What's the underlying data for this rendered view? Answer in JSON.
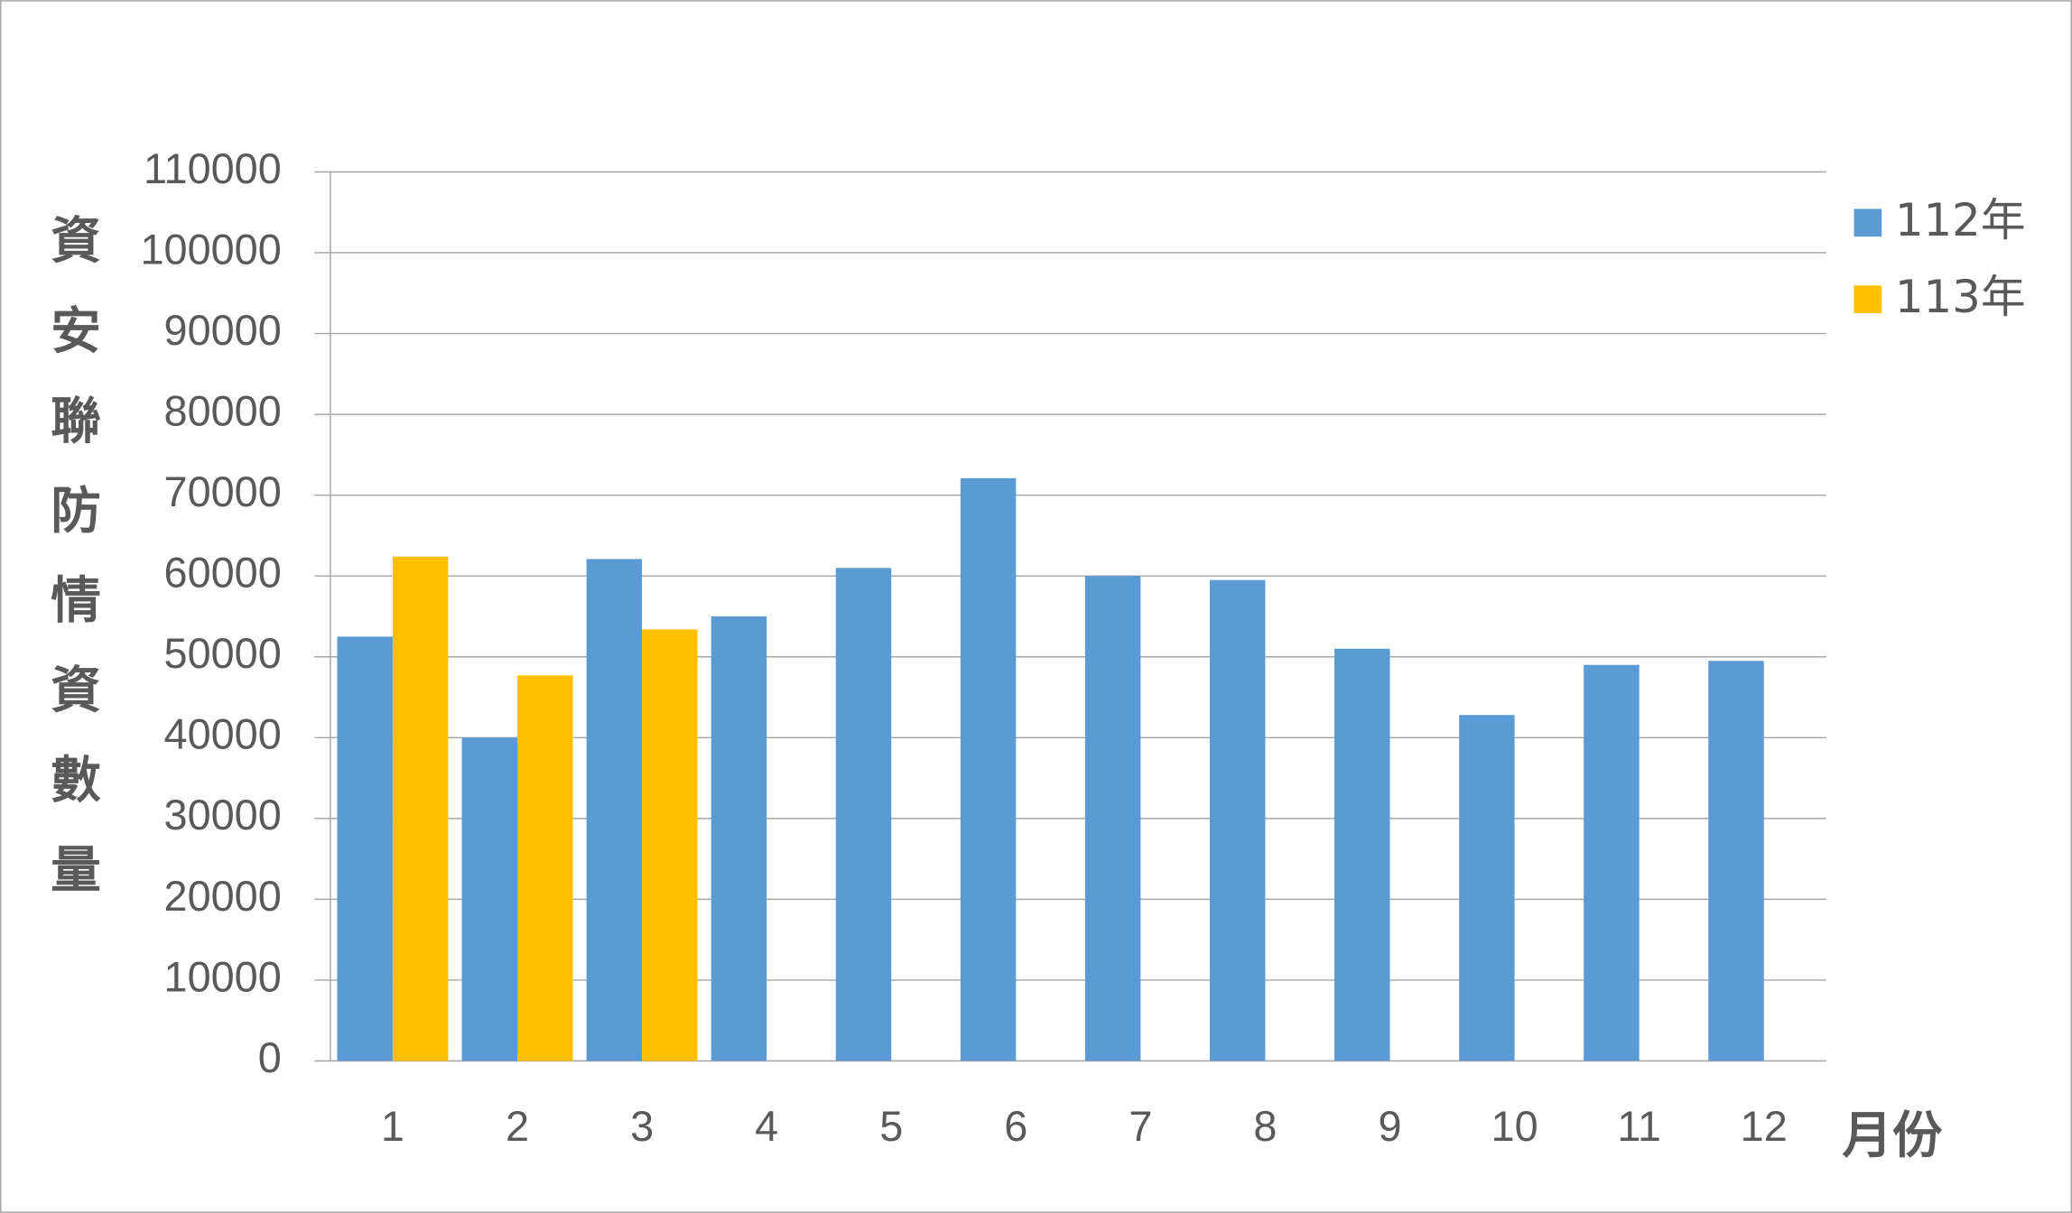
{
  "chart_data": {
    "type": "bar",
    "y_axis_label": "資安聯防情資數量",
    "x_axis_label": "月份",
    "categories": [
      "1",
      "2",
      "3",
      "4",
      "5",
      "6",
      "7",
      "8",
      "9",
      "10",
      "11",
      "12"
    ],
    "series": [
      {
        "name": "112年",
        "color": "#5b9bd5",
        "values": [
          52500,
          40000,
          62100,
          55000,
          61000,
          72100,
          60000,
          59500,
          51000,
          42800,
          49000,
          49500
        ]
      },
      {
        "name": "113年",
        "color": "#ffc000",
        "values": [
          62400,
          47700,
          53400,
          null,
          null,
          null,
          null,
          null,
          null,
          null,
          null,
          null
        ]
      }
    ],
    "ylim": [
      0,
      110000
    ],
    "yticks": [
      0,
      10000,
      20000,
      30000,
      40000,
      50000,
      60000,
      70000,
      80000,
      90000,
      100000,
      110000
    ],
    "grid": true,
    "legend": "right"
  }
}
